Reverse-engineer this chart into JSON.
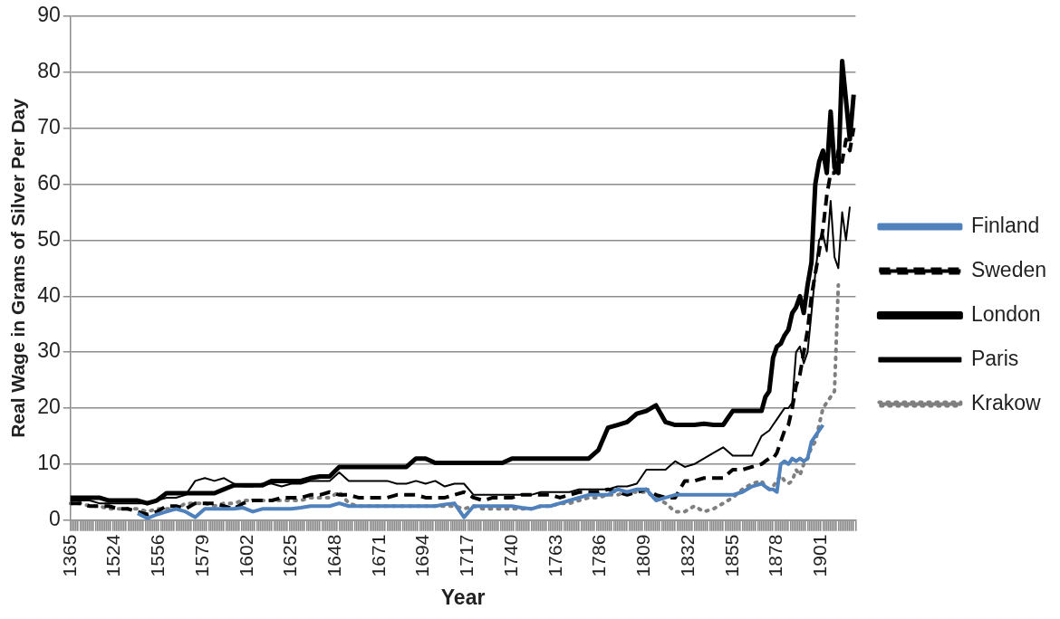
{
  "chart_data": {
    "type": "line",
    "xlabel": "Year",
    "ylabel": "Real Wage in Grams of Silver Per Day",
    "categories": [
      "1365",
      null,
      null,
      null,
      null,
      null,
      null,
      null,
      null,
      null,
      null,
      null,
      null,
      null,
      null,
      null,
      null,
      null,
      null,
      null,
      null,
      null,
      null,
      "1524",
      null,
      null,
      null,
      null,
      null,
      null,
      null,
      null,
      null,
      null,
      null,
      null,
      null,
      null,
      null,
      null,
      null,
      null,
      null,
      null,
      null,
      null,
      "1556",
      null,
      null,
      null,
      null,
      null,
      null,
      null,
      null,
      null,
      null,
      null,
      null,
      null,
      null,
      null,
      null,
      null,
      null,
      null,
      null,
      null,
      null,
      "1579",
      null,
      null,
      null,
      null,
      null,
      null,
      null,
      null,
      null,
      null,
      null,
      null,
      null,
      null,
      null,
      null,
      null,
      null,
      null,
      null,
      null,
      null,
      "1602",
      null,
      null,
      null,
      null,
      null,
      null,
      null,
      null,
      null,
      null,
      null,
      null,
      null,
      null,
      null,
      null,
      null,
      null,
      null,
      null,
      null,
      null,
      "1625",
      null,
      null,
      null,
      null,
      null,
      null,
      null,
      null,
      null,
      null,
      null,
      null,
      null,
      null,
      null,
      null,
      null,
      null,
      null,
      null,
      null,
      null,
      "1648",
      null,
      null,
      null,
      null,
      null,
      null,
      null,
      null,
      null,
      null,
      null,
      null,
      null,
      null,
      null,
      null,
      null,
      null,
      null,
      null,
      null,
      null,
      "1671",
      null,
      null,
      null,
      null,
      null,
      null,
      null,
      null,
      null,
      null,
      null,
      null,
      null,
      null,
      null,
      null,
      null,
      null,
      null,
      null,
      null,
      null,
      "1694",
      null,
      null,
      null,
      null,
      null,
      null,
      null,
      null,
      null,
      null,
      null,
      null,
      null,
      null,
      null,
      null,
      null,
      null,
      null,
      null,
      null,
      null,
      "1717",
      null,
      null,
      null,
      null,
      null,
      null,
      null,
      null,
      null,
      null,
      null,
      null,
      null,
      null,
      null,
      null,
      null,
      null,
      null,
      null,
      null,
      null,
      "1740",
      null,
      null,
      null,
      null,
      null,
      null,
      null,
      null,
      null,
      null,
      null,
      null,
      null,
      null,
      null,
      null,
      null,
      null,
      null,
      null,
      null,
      null,
      "1763",
      null,
      null,
      null,
      null,
      null,
      null,
      null,
      null,
      null,
      null,
      null,
      null,
      null,
      null,
      null,
      null,
      null,
      null,
      null,
      null,
      null,
      null,
      "1786",
      null,
      null,
      null,
      null,
      null,
      null,
      null,
      null,
      null,
      null,
      null,
      null,
      null,
      null,
      null,
      null,
      null,
      null,
      null,
      null,
      null,
      null,
      "1809",
      null,
      null,
      null,
      null,
      null,
      null,
      null,
      null,
      null,
      null,
      null,
      null,
      null,
      null,
      null,
      null,
      null,
      null,
      null,
      null,
      null,
      null,
      "1832",
      null,
      null,
      null,
      null,
      null,
      null,
      null,
      null,
      null,
      null,
      null,
      null,
      null,
      null,
      null,
      null,
      null,
      null,
      null,
      null,
      null,
      null,
      "1855",
      null,
      null,
      null,
      null,
      null,
      null,
      null,
      null,
      null,
      null,
      null,
      null,
      null,
      null,
      null,
      null,
      null,
      null,
      null,
      null,
      null,
      null,
      "1878",
      null,
      null,
      null,
      null,
      null,
      null,
      null,
      null,
      null,
      null,
      null,
      null,
      null,
      null,
      null,
      null,
      null,
      null,
      null,
      null,
      null,
      null,
      "1901",
      null,
      null,
      null,
      null,
      null,
      null,
      null,
      null,
      null,
      null,
      null,
      null,
      null,
      null,
      null,
      null,
      null,
      null
    ],
    "series": [
      {
        "name": "Finland",
        "color": "#4f81bd",
        "line_style": "solid",
        "values": [
          null,
          null,
          null,
          null,
          null,
          null,
          null,
          null,
          null,
          null,
          null,
          null,
          null,
          null,
          null,
          null,
          null,
          null,
          null,
          null,
          null,
          null,
          null,
          null,
          null,
          null,
          null,
          null,
          null,
          null,
          null,
          null,
          null,
          null,
          null,
          1.2,
          null,
          null,
          null,
          null,
          0.3,
          null,
          null,
          null,
          null,
          1,
          null,
          null,
          null,
          null,
          1.5,
          null,
          null,
          null,
          null,
          2,
          null,
          null,
          null,
          null,
          1.5,
          null,
          null,
          null,
          null,
          0.5,
          null,
          null,
          null,
          null,
          2,
          null,
          null,
          null,
          null,
          2,
          null,
          null,
          null,
          null,
          2,
          null,
          null,
          null,
          null,
          2,
          null,
          null,
          null,
          null,
          2.2,
          null,
          null,
          null,
          null,
          1.5,
          null,
          null,
          null,
          null,
          2,
          null,
          null,
          null,
          null,
          2,
          null,
          null,
          null,
          null,
          2,
          null,
          null,
          null,
          null,
          2,
          null,
          null,
          null,
          null,
          2.2,
          null,
          null,
          null,
          null,
          2.5,
          null,
          null,
          null,
          null,
          2.5,
          null,
          null,
          null,
          null,
          2.5,
          null,
          null,
          null,
          null,
          3,
          null,
          null,
          null,
          null,
          2.5,
          null,
          null,
          null,
          null,
          2.5,
          null,
          null,
          null,
          null,
          2.5,
          null,
          null,
          null,
          null,
          2.5,
          null,
          null,
          null,
          null,
          2.5,
          null,
          null,
          null,
          null,
          2.5,
          null,
          null,
          null,
          null,
          2.5,
          null,
          null,
          null,
          null,
          2.5,
          null,
          null,
          null,
          null,
          2.5,
          null,
          null,
          null,
          null,
          2.5,
          null,
          null,
          null,
          null,
          2.8,
          null,
          null,
          null,
          null,
          3,
          null,
          null,
          null,
          null,
          0.5,
          null,
          null,
          null,
          null,
          2.5,
          null,
          null,
          null,
          null,
          2.5,
          null,
          null,
          null,
          null,
          2.5,
          null,
          null,
          null,
          null,
          2.5,
          null,
          null,
          null,
          null,
          2.5,
          null,
          null,
          null,
          null,
          2.2,
          null,
          null,
          null,
          null,
          2,
          null,
          null,
          null,
          null,
          2.5,
          null,
          null,
          null,
          null,
          2.5,
          null,
          null,
          null,
          null,
          3,
          null,
          null,
          null,
          null,
          3.5,
          null,
          null,
          null,
          null,
          4,
          null,
          null,
          null,
          null,
          4.5,
          null,
          null,
          null,
          null,
          4.5,
          null,
          null,
          null,
          null,
          4.5,
          null,
          null,
          null,
          null,
          5.5,
          null,
          null,
          null,
          null,
          5,
          null,
          null,
          null,
          null,
          5.5,
          null,
          null,
          null,
          null,
          5.5,
          null,
          null,
          null,
          null,
          3.5,
          null,
          null,
          null,
          null,
          4,
          null,
          null,
          null,
          null,
          4.5,
          null,
          null,
          null,
          null,
          4.5,
          null,
          null,
          null,
          null,
          4.5,
          null,
          null,
          null,
          null,
          4.5,
          null,
          null,
          null,
          null,
          4.5,
          null,
          null,
          null,
          null,
          4.5,
          null,
          null,
          null,
          null,
          4.5,
          null,
          null,
          null,
          null,
          5,
          null,
          null,
          null,
          null,
          6,
          null,
          null,
          null,
          null,
          6.5,
          null,
          6,
          null,
          5.5,
          null,
          5.5,
          null,
          5,
          null,
          10,
          null,
          10.5,
          null,
          10,
          null,
          11,
          null,
          10.5,
          null,
          11,
          null,
          10.5,
          null,
          11,
          null,
          14,
          null,
          15,
          null,
          16,
          null,
          17,
          null,
          null,
          null,
          null,
          null,
          null,
          null,
          null,
          null,
          null,
          null,
          null,
          null,
          null,
          null,
          null,
          null
        ]
      },
      {
        "name": "Sweden",
        "color": "#000000",
        "line_style": "dashed",
        "values": [
          3,
          null,
          null,
          null,
          null,
          3,
          null,
          null,
          null,
          null,
          2.5,
          null,
          null,
          null,
          null,
          2.5,
          null,
          null,
          null,
          null,
          2.5,
          null,
          null,
          null,
          null,
          2,
          null,
          null,
          null,
          null,
          2,
          null,
          null,
          null,
          null,
          1.5,
          null,
          null,
          null,
          null,
          1,
          null,
          null,
          null,
          null,
          1.5,
          null,
          null,
          null,
          null,
          2.5,
          null,
          null,
          null,
          null,
          2.5,
          null,
          null,
          null,
          null,
          2,
          null,
          null,
          null,
          null,
          3,
          null,
          null,
          null,
          null,
          3,
          null,
          null,
          null,
          null,
          3,
          null,
          null,
          null,
          null,
          2.5,
          null,
          null,
          null,
          null,
          2,
          null,
          null,
          null,
          null,
          3,
          null,
          null,
          null,
          null,
          3.5,
          null,
          null,
          null,
          null,
          3.5,
          null,
          null,
          null,
          null,
          3.5,
          null,
          null,
          null,
          null,
          4,
          null,
          null,
          null,
          null,
          4,
          null,
          null,
          null,
          null,
          4,
          null,
          null,
          null,
          null,
          4.5,
          null,
          null,
          null,
          null,
          4.5,
          null,
          null,
          null,
          null,
          5,
          null,
          null,
          null,
          null,
          4.5,
          null,
          null,
          null,
          null,
          4.5,
          null,
          null,
          null,
          null,
          4,
          null,
          null,
          null,
          null,
          4,
          null,
          null,
          null,
          null,
          4,
          null,
          null,
          null,
          null,
          4,
          null,
          null,
          null,
          null,
          4.5,
          null,
          null,
          null,
          null,
          4.5,
          null,
          null,
          null,
          null,
          4.5,
          null,
          null,
          null,
          null,
          4,
          null,
          null,
          null,
          null,
          4,
          null,
          null,
          null,
          null,
          4,
          null,
          null,
          null,
          null,
          4.5,
          null,
          null,
          null,
          null,
          5,
          null,
          null,
          null,
          null,
          4,
          null,
          null,
          null,
          null,
          3.5,
          null,
          null,
          null,
          null,
          4,
          null,
          null,
          null,
          null,
          4,
          null,
          null,
          null,
          null,
          4,
          null,
          null,
          null,
          null,
          4.5,
          null,
          null,
          null,
          null,
          4.5,
          null,
          null,
          null,
          null,
          4.5,
          null,
          null,
          null,
          null,
          4.5,
          null,
          null,
          null,
          null,
          4,
          null,
          null,
          null,
          null,
          4.5,
          null,
          null,
          null,
          null,
          5,
          null,
          null,
          null,
          null,
          5,
          null,
          null,
          null,
          null,
          5,
          null,
          null,
          null,
          null,
          5.5,
          null,
          null,
          null,
          null,
          5,
          null,
          null,
          null,
          null,
          4.5,
          null,
          null,
          null,
          null,
          5,
          null,
          null,
          null,
          null,
          5.5,
          null,
          null,
          null,
          null,
          4.5,
          null,
          null,
          null,
          null,
          4,
          null,
          null,
          null,
          null,
          4,
          null,
          null,
          null,
          null,
          7,
          null,
          null,
          null,
          null,
          7,
          null,
          null,
          null,
          null,
          7.5,
          null,
          null,
          null,
          null,
          7.5,
          null,
          null,
          null,
          null,
          7.5,
          null,
          null,
          null,
          null,
          9,
          null,
          null,
          null,
          null,
          9,
          null,
          null,
          null,
          null,
          9.5,
          null,
          null,
          null,
          null,
          10,
          null,
          10.5,
          null,
          11,
          null,
          11,
          null,
          12,
          null,
          14,
          null,
          16,
          null,
          17,
          null,
          20,
          null,
          24,
          null,
          26,
          null,
          30,
          null,
          34,
          null,
          40,
          null,
          44,
          null,
          48,
          null,
          52,
          null,
          58,
          null,
          62,
          null,
          62,
          null,
          66,
          null,
          64,
          null,
          68,
          null,
          66,
          null,
          70,
          null
        ]
      },
      {
        "name": "London",
        "color": "#000000",
        "line_style": "solid",
        "values": [
          4,
          null,
          null,
          null,
          null,
          4,
          null,
          null,
          null,
          null,
          4,
          null,
          null,
          null,
          null,
          4,
          null,
          null,
          null,
          null,
          3.5,
          null,
          null,
          null,
          null,
          3.5,
          null,
          null,
          null,
          null,
          3.5,
          null,
          null,
          null,
          null,
          3.5,
          null,
          null,
          null,
          null,
          3,
          null,
          null,
          null,
          null,
          3.5,
          null,
          null,
          null,
          null,
          4.8,
          null,
          null,
          null,
          null,
          4.8,
          null,
          null,
          null,
          null,
          4.8,
          null,
          null,
          null,
          null,
          4.8,
          null,
          null,
          null,
          null,
          4.8,
          null,
          null,
          null,
          null,
          4.8,
          null,
          null,
          null,
          null,
          5.5,
          null,
          null,
          null,
          null,
          6.2,
          null,
          null,
          null,
          null,
          6.2,
          null,
          null,
          null,
          null,
          6.2,
          null,
          null,
          null,
          null,
          6.2,
          null,
          null,
          null,
          null,
          7,
          null,
          null,
          null,
          null,
          7,
          null,
          null,
          null,
          null,
          7,
          null,
          null,
          null,
          null,
          7,
          null,
          null,
          null,
          null,
          7.5,
          null,
          null,
          null,
          null,
          7.8,
          null,
          null,
          null,
          null,
          7.8,
          null,
          null,
          null,
          null,
          9.5,
          null,
          null,
          null,
          null,
          9.5,
          null,
          null,
          null,
          null,
          9.5,
          null,
          null,
          null,
          null,
          9.5,
          null,
          null,
          null,
          null,
          9.5,
          null,
          null,
          null,
          null,
          9.5,
          null,
          null,
          null,
          null,
          9.5,
          null,
          null,
          null,
          null,
          9.5,
          null,
          null,
          null,
          null,
          11,
          null,
          null,
          null,
          null,
          11,
          null,
          null,
          null,
          null,
          10.2,
          null,
          null,
          null,
          null,
          10.2,
          null,
          null,
          null,
          null,
          10.2,
          null,
          null,
          null,
          null,
          10.2,
          null,
          null,
          null,
          null,
          10.2,
          null,
          null,
          null,
          null,
          10.2,
          null,
          null,
          null,
          null,
          10.2,
          null,
          null,
          null,
          null,
          10.2,
          null,
          null,
          null,
          null,
          11,
          null,
          null,
          null,
          null,
          11,
          null,
          null,
          null,
          null,
          11,
          null,
          null,
          null,
          null,
          11,
          null,
          null,
          null,
          null,
          11,
          null,
          null,
          null,
          null,
          11,
          null,
          null,
          null,
          null,
          11,
          null,
          null,
          null,
          null,
          11,
          null,
          null,
          null,
          null,
          11,
          null,
          null,
          null,
          null,
          12.5,
          null,
          null,
          null,
          null,
          16.5,
          null,
          null,
          null,
          null,
          17,
          null,
          null,
          null,
          null,
          17.5,
          null,
          null,
          null,
          null,
          19,
          null,
          null,
          null,
          null,
          19.5,
          null,
          null,
          null,
          null,
          20.5,
          null,
          null,
          null,
          null,
          17.5,
          null,
          null,
          null,
          null,
          17,
          null,
          null,
          null,
          null,
          17,
          null,
          null,
          null,
          null,
          17,
          null,
          null,
          null,
          null,
          17.2,
          null,
          null,
          null,
          null,
          17,
          null,
          null,
          null,
          null,
          17,
          null,
          null,
          null,
          null,
          19.5,
          null,
          null,
          null,
          null,
          19.5,
          null,
          null,
          null,
          null,
          19.5,
          null,
          null,
          null,
          null,
          19.5,
          null,
          22,
          null,
          23,
          null,
          29,
          null,
          31,
          null,
          31.5,
          null,
          33,
          null,
          34,
          null,
          37,
          null,
          38,
          null,
          40,
          null,
          37,
          null,
          42,
          null,
          46,
          null,
          60,
          null,
          64,
          null,
          66,
          null,
          62,
          null,
          73,
          null,
          63,
          null,
          62,
          null,
          82,
          null,
          75,
          null,
          68,
          null,
          76,
          null
        ]
      },
      {
        "name": "Paris",
        "color": "#000000",
        "line_style": "solid",
        "values": [
          3.5,
          null,
          null,
          null,
          null,
          3.5,
          null,
          null,
          null,
          null,
          3.5,
          null,
          null,
          null,
          null,
          3,
          null,
          null,
          null,
          null,
          3,
          null,
          null,
          null,
          null,
          3,
          null,
          null,
          null,
          null,
          3,
          null,
          null,
          null,
          null,
          3,
          null,
          null,
          null,
          null,
          3,
          null,
          null,
          null,
          null,
          3.5,
          null,
          null,
          null,
          null,
          4,
          null,
          null,
          null,
          null,
          4,
          null,
          null,
          null,
          null,
          4.5,
          null,
          null,
          null,
          null,
          7,
          null,
          null,
          null,
          null,
          7.5,
          null,
          null,
          null,
          null,
          7,
          null,
          null,
          null,
          null,
          7.5,
          null,
          null,
          null,
          null,
          6.5,
          null,
          null,
          null,
          null,
          6,
          null,
          null,
          null,
          null,
          6,
          null,
          null,
          null,
          null,
          6.5,
          null,
          null,
          null,
          null,
          6.5,
          null,
          null,
          null,
          null,
          6,
          null,
          null,
          null,
          null,
          6.5,
          null,
          null,
          null,
          null,
          6.5,
          null,
          null,
          null,
          null,
          7,
          null,
          null,
          null,
          null,
          7,
          null,
          null,
          null,
          null,
          7,
          null,
          null,
          null,
          null,
          8.5,
          null,
          null,
          null,
          null,
          7,
          null,
          null,
          null,
          null,
          7,
          null,
          null,
          null,
          null,
          7,
          null,
          null,
          null,
          null,
          7,
          null,
          null,
          null,
          null,
          7,
          null,
          null,
          null,
          null,
          6.5,
          null,
          null,
          null,
          null,
          6.5,
          null,
          null,
          null,
          null,
          7,
          null,
          null,
          null,
          null,
          6.5,
          null,
          null,
          null,
          null,
          7,
          null,
          null,
          null,
          null,
          6,
          null,
          null,
          null,
          null,
          6.5,
          null,
          null,
          null,
          null,
          6.5,
          null,
          null,
          null,
          null,
          4.5,
          null,
          null,
          null,
          null,
          4.5,
          null,
          null,
          null,
          null,
          4.5,
          null,
          null,
          null,
          null,
          4.5,
          null,
          null,
          null,
          null,
          4.5,
          null,
          null,
          null,
          null,
          4.5,
          null,
          null,
          null,
          null,
          4.5,
          null,
          null,
          null,
          null,
          5,
          null,
          null,
          null,
          null,
          5,
          null,
          null,
          null,
          null,
          5,
          null,
          null,
          null,
          null,
          5,
          null,
          null,
          null,
          null,
          5.5,
          null,
          null,
          null,
          null,
          5.5,
          null,
          null,
          null,
          null,
          5.5,
          null,
          null,
          null,
          null,
          5.5,
          null,
          null,
          null,
          null,
          6,
          null,
          null,
          null,
          null,
          6,
          null,
          null,
          null,
          null,
          6.5,
          null,
          null,
          null,
          null,
          9,
          null,
          null,
          null,
          null,
          9,
          null,
          null,
          null,
          null,
          9,
          null,
          null,
          null,
          null,
          10.5,
          null,
          null,
          null,
          null,
          9.5,
          null,
          null,
          null,
          null,
          10,
          null,
          null,
          null,
          null,
          11,
          null,
          null,
          null,
          null,
          12,
          null,
          null,
          null,
          null,
          13,
          null,
          null,
          null,
          null,
          11.5,
          null,
          null,
          null,
          null,
          11.5,
          null,
          null,
          null,
          null,
          11.5,
          null,
          null,
          null,
          null,
          15,
          null,
          15.5,
          null,
          16,
          null,
          17,
          null,
          18,
          null,
          19,
          null,
          20,
          null,
          20,
          null,
          21,
          null,
          30,
          null,
          31,
          null,
          28,
          null,
          30,
          null,
          37,
          null,
          44,
          null,
          50,
          null,
          51,
          null,
          48,
          null,
          57,
          null,
          47,
          null,
          45,
          null,
          55,
          null,
          50,
          null,
          56,
          null,
          null,
          null
        ]
      },
      {
        "name": "Krakow",
        "color": "#7f7f7f",
        "line_style": "dotted",
        "values": [
          3,
          null,
          null,
          null,
          null,
          3,
          null,
          null,
          null,
          null,
          2.5,
          null,
          null,
          null,
          null,
          2.5,
          null,
          null,
          null,
          null,
          2,
          null,
          null,
          null,
          null,
          2,
          null,
          null,
          null,
          null,
          2,
          null,
          null,
          null,
          null,
          2,
          null,
          null,
          null,
          null,
          1.5,
          null,
          null,
          null,
          null,
          2,
          null,
          null,
          null,
          null,
          2,
          null,
          null,
          null,
          null,
          2,
          null,
          null,
          null,
          null,
          3,
          null,
          null,
          null,
          null,
          3,
          null,
          null,
          null,
          null,
          3,
          null,
          null,
          null,
          null,
          2.5,
          null,
          null,
          null,
          null,
          3,
          null,
          null,
          null,
          null,
          3,
          null,
          null,
          null,
          null,
          3.5,
          null,
          null,
          null,
          null,
          3.5,
          null,
          null,
          null,
          null,
          3.5,
          null,
          null,
          null,
          null,
          3.5,
          null,
          null,
          null,
          null,
          3.5,
          null,
          null,
          null,
          null,
          3.5,
          null,
          null,
          null,
          null,
          3.5,
          null,
          null,
          null,
          null,
          4,
          null,
          null,
          null,
          null,
          4,
          null,
          null,
          null,
          null,
          4,
          null,
          null,
          null,
          null,
          5,
          null,
          null,
          null,
          null,
          3,
          null,
          null,
          null,
          null,
          2.5,
          null,
          null,
          null,
          null,
          2.5,
          null,
          null,
          null,
          null,
          2.5,
          null,
          null,
          null,
          null,
          2.5,
          null,
          null,
          null,
          null,
          2.5,
          null,
          null,
          null,
          null,
          2.5,
          null,
          null,
          null,
          null,
          2.5,
          null,
          null,
          null,
          null,
          2.5,
          null,
          null,
          null,
          null,
          2.5,
          null,
          null,
          null,
          null,
          2.5,
          null,
          null,
          null,
          null,
          2.5,
          null,
          null,
          null,
          null,
          2,
          null,
          null,
          null,
          null,
          2.5,
          null,
          null,
          null,
          null,
          2,
          null,
          null,
          null,
          null,
          2,
          null,
          null,
          null,
          null,
          2,
          null,
          null,
          null,
          null,
          2,
          null,
          null,
          null,
          null,
          2,
          null,
          null,
          null,
          null,
          2,
          null,
          null,
          null,
          null,
          2.5,
          null,
          null,
          null,
          null,
          2.5,
          null,
          null,
          null,
          null,
          3,
          null,
          null,
          null,
          null,
          3,
          null,
          null,
          null,
          null,
          3.5,
          null,
          null,
          null,
          null,
          4,
          null,
          null,
          null,
          null,
          4,
          null,
          null,
          null,
          null,
          4.5,
          null,
          null,
          null,
          null,
          4.5,
          null,
          null,
          null,
          null,
          5,
          null,
          null,
          null,
          null,
          5,
          null,
          null,
          null,
          null,
          5,
          null,
          null,
          null,
          null,
          4,
          null,
          null,
          null,
          null,
          3,
          null,
          null,
          null,
          null,
          1.5,
          null,
          null,
          null,
          null,
          1.5,
          null,
          null,
          null,
          null,
          2.5,
          null,
          null,
          null,
          null,
          1.5,
          null,
          null,
          null,
          null,
          2,
          null,
          null,
          null,
          null,
          3,
          null,
          null,
          null,
          null,
          4,
          null,
          null,
          null,
          null,
          5.5,
          null,
          null,
          null,
          null,
          6.5,
          null,
          null,
          null,
          null,
          7,
          null,
          6,
          null,
          5.5,
          null,
          6,
          null,
          7,
          null,
          8,
          null,
          7,
          null,
          6.5,
          null,
          7,
          null,
          9,
          null,
          8,
          null,
          10,
          null,
          11,
          null,
          13,
          null,
          14,
          null,
          17,
          null,
          20,
          null,
          21,
          null,
          22,
          null,
          23,
          null,
          42,
          null,
          null,
          null,
          null,
          null,
          null,
          null,
          null,
          null
        ]
      }
    ],
    "ylim": [
      0,
      90
    ],
    "yticks": [
      0,
      10,
      20,
      30,
      40,
      50,
      60,
      70,
      80,
      90
    ],
    "grid": "y",
    "legend": "right",
    "marker": "none"
  }
}
